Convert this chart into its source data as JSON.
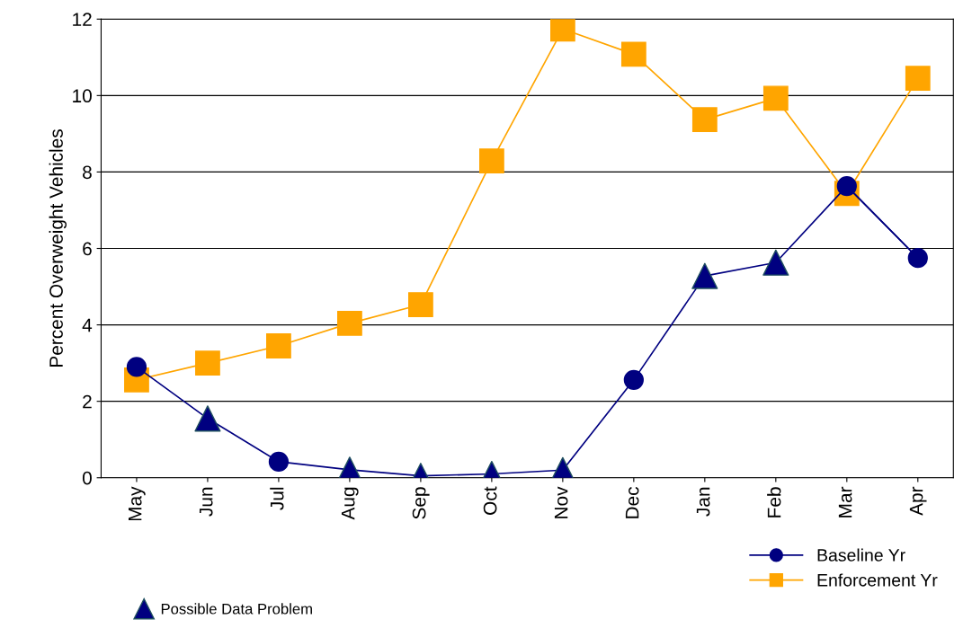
{
  "chart_data": {
    "type": "line",
    "ylabel": "Percent Overweight Vehicles",
    "categories": [
      "May",
      "Jun",
      "Jul",
      "Aug",
      "Sep",
      "Oct",
      "Nov",
      "Dec",
      "Jan",
      "Feb",
      "Mar",
      "Apr"
    ],
    "series": [
      {
        "color": "#000080",
        "marker": "none",
        "values": [
          2.9,
          1.55,
          0.42,
          0.21,
          0.05,
          0.1,
          0.2,
          2.56,
          5.28,
          5.63,
          7.63,
          5.75
        ]
      },
      {
        "name": "Baseline Yr",
        "color": "#000080",
        "marker": "circle",
        "values": [
          2.9,
          null,
          0.42,
          null,
          null,
          null,
          null,
          2.56,
          null,
          null,
          7.63,
          5.75
        ]
      },
      {
        "name": "Enforcement Yr",
        "color": "#ffa500",
        "marker": "square",
        "values": [
          2.56,
          3.0,
          3.45,
          4.04,
          4.53,
          8.29,
          11.74,
          11.08,
          9.37,
          9.93,
          7.44,
          10.45
        ]
      },
      {
        "name": "Possible Data Problem",
        "type": "scatter",
        "color": "#000080",
        "marker": "triangle",
        "values": [
          null,
          1.55,
          null,
          0.21,
          0.05,
          0.1,
          0.2,
          null,
          5.28,
          5.63,
          null,
          null
        ]
      }
    ],
    "ylim": [
      0,
      12
    ],
    "yticks": [
      0,
      2,
      4,
      6,
      8,
      10,
      12
    ],
    "grid": "y",
    "legend": "bottom right"
  }
}
